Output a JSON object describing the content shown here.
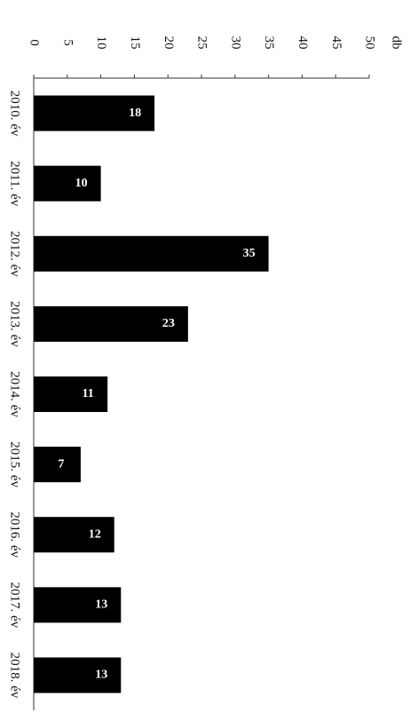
{
  "chart_data": {
    "type": "bar",
    "orientation": "horizontal",
    "ylabel": "db",
    "categories": [
      "2010. év",
      "2011. év",
      "2012. év",
      "2013. év",
      "2014. év",
      "2015. év",
      "2016. év",
      "2017. év",
      "2018. év"
    ],
    "values": [
      18,
      10,
      35,
      23,
      11,
      7,
      12,
      13,
      13
    ],
    "color": "#000000",
    "ylim": [
      0,
      50
    ],
    "yticks": [
      0,
      5,
      10,
      15,
      20,
      25,
      30,
      35,
      40,
      45,
      50
    ],
    "grid": false
  }
}
